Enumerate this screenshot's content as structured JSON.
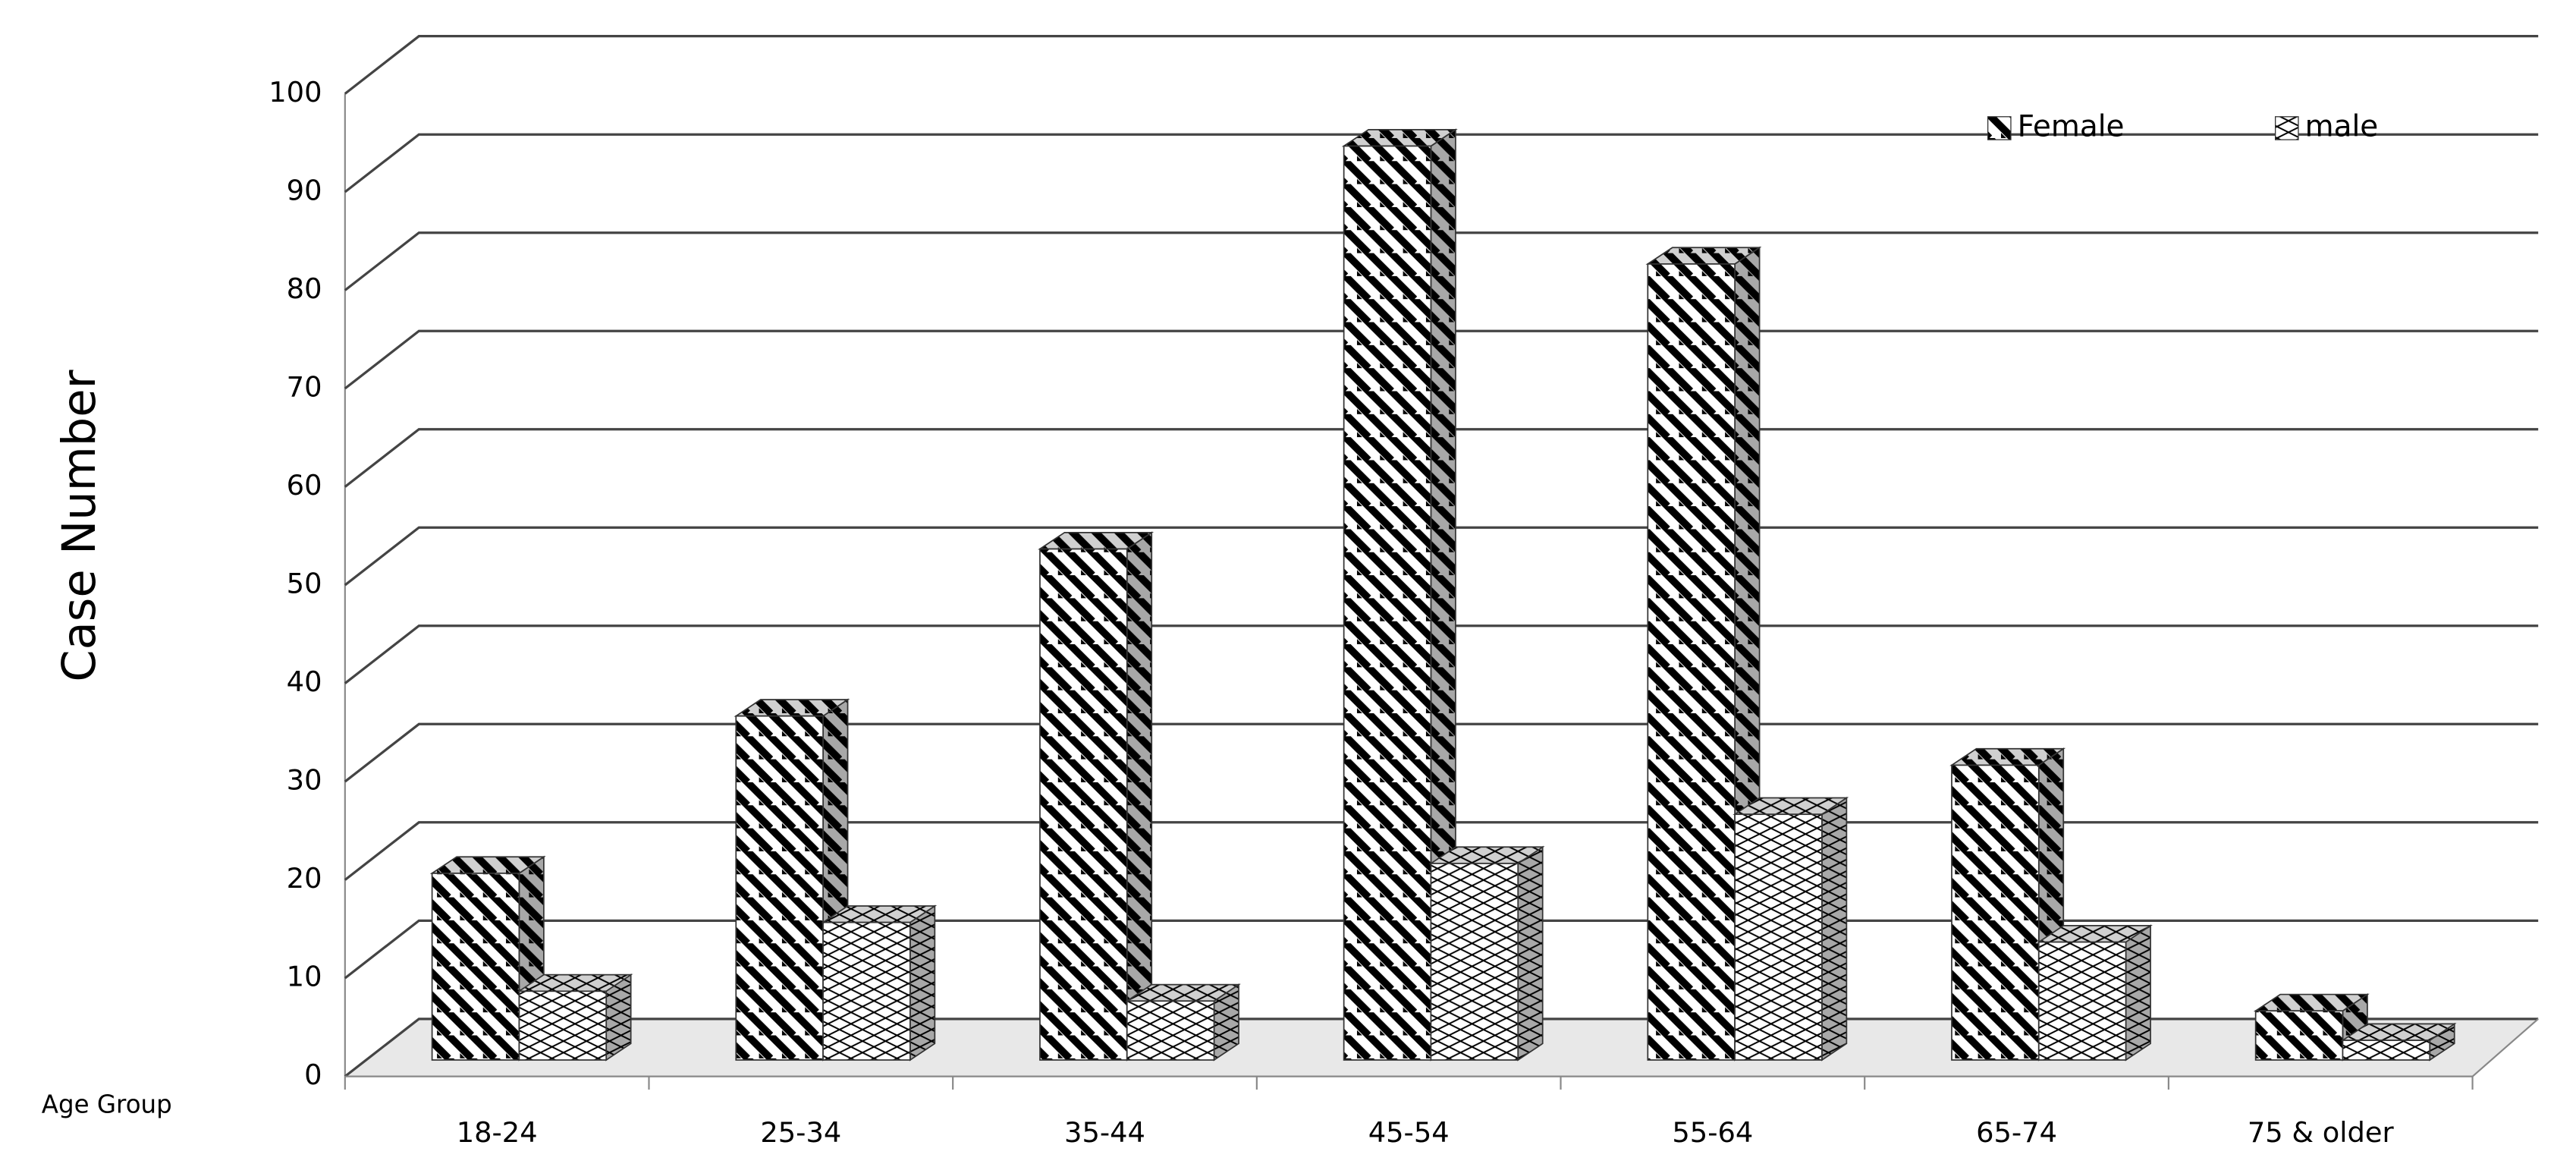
{
  "chart_data": {
    "type": "bar3d",
    "categories": [
      "18-24",
      "25-34",
      "35-44",
      "45-54",
      "55-64",
      "65-74",
      "75 & older"
    ],
    "series": [
      {
        "name": "Female",
        "color": "#000000",
        "pattern": "stripes",
        "values": [
          19,
          35,
          52,
          93,
          81,
          30,
          5
        ]
      },
      {
        "name": "male",
        "color": "#000000",
        "pattern": "crosshatch",
        "values": [
          7,
          14,
          6,
          20,
          25,
          12,
          2
        ]
      }
    ],
    "ylabel": "Case Number",
    "xlabel": "Age Group",
    "ylim": [
      0,
      100
    ],
    "yticks": [
      0,
      10,
      20,
      30,
      40,
      50,
      60,
      70,
      80,
      90,
      100
    ],
    "grid": true,
    "legend": "top-right"
  }
}
